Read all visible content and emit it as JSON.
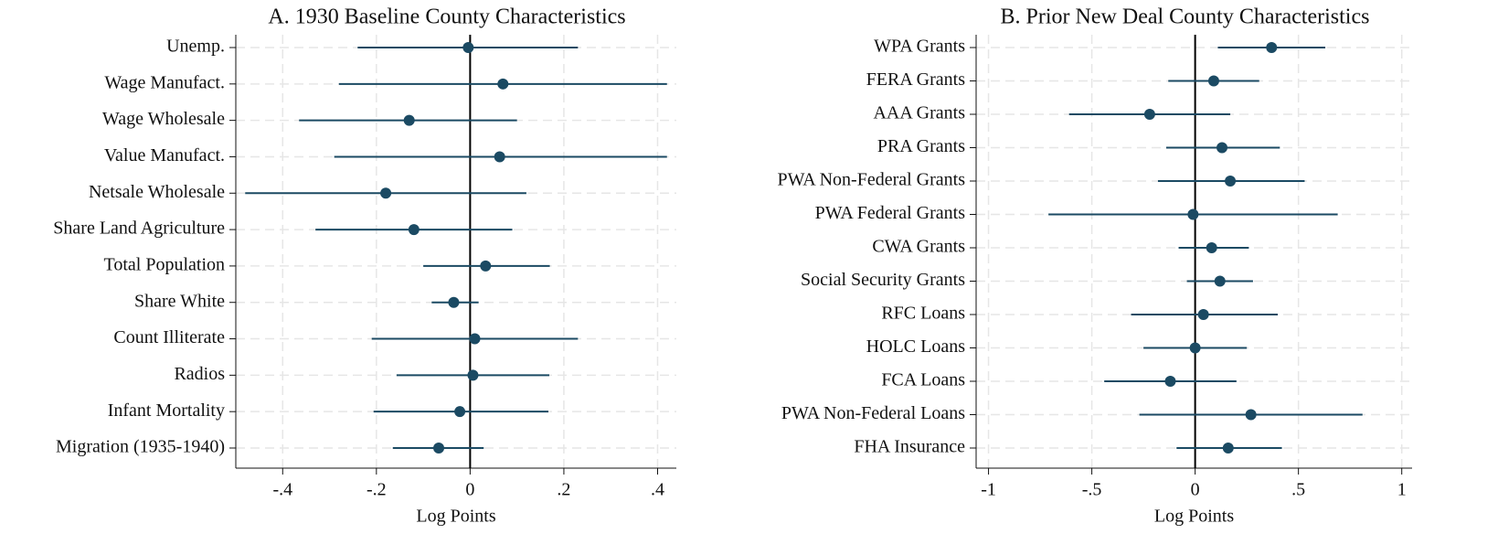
{
  "chart_data": [
    {
      "type": "coefplot",
      "title": "A. 1930 Baseline County Characteristics",
      "x_label": "Log Points",
      "categories": [
        "Unemp.",
        "Wage Manufact.",
        "Wage Wholesale",
        "Value Manufact.",
        "Netsale Wholesale",
        "Share Land Agriculture",
        "Total Population",
        "Share White",
        "Count Illiterate",
        "Radios",
        "Infant Mortality",
        "Migration (1935-1940)"
      ],
      "values": [
        -0.004,
        0.07,
        -0.13,
        0.063,
        -0.18,
        -0.12,
        0.033,
        -0.035,
        0.01,
        0.006,
        -0.022,
        -0.067
      ],
      "lower": [
        -0.24,
        -0.28,
        -0.365,
        -0.29,
        -0.48,
        -0.33,
        -0.1,
        -0.082,
        -0.21,
        -0.157,
        -0.206,
        -0.165
      ],
      "upper": [
        0.23,
        0.42,
        0.1,
        0.42,
        0.12,
        0.09,
        0.17,
        0.018,
        0.23,
        0.169,
        0.167,
        0.029
      ],
      "color": "#1b4a63",
      "refline": 0,
      "grid": true,
      "xlim": [
        -0.5,
        0.44
      ],
      "xticks": [
        {
          "value": -0.4,
          "label": "-.4"
        },
        {
          "value": -0.2,
          "label": "-.2"
        },
        0,
        {
          "value": 0.2,
          "label": ".2"
        },
        {
          "value": 0.4,
          "label": ".4"
        }
      ]
    },
    {
      "type": "coefplot",
      "title": "B. Prior New Deal County Characteristics",
      "x_label": "Log Points",
      "categories": [
        "WPA Grants",
        "FERA Grants",
        "AAA Grants",
        "PRA Grants",
        "PWA Non-Federal Grants",
        "PWA Federal Grants",
        "CWA Grants",
        "Social Security Grants",
        "RFC Loans",
        "HOLC Loans",
        "FCA Loans",
        "PWA Non-Federal Loans",
        "FHA Insurance"
      ],
      "values": [
        0.37,
        0.09,
        -0.22,
        0.13,
        0.17,
        -0.01,
        0.08,
        0.12,
        0.04,
        0.0,
        -0.12,
        0.27,
        0.16
      ],
      "lower": [
        0.11,
        -0.13,
        -0.61,
        -0.14,
        -0.18,
        -0.71,
        -0.08,
        -0.04,
        -0.31,
        -0.25,
        -0.44,
        -0.27,
        -0.09
      ],
      "upper": [
        0.63,
        0.31,
        0.17,
        0.41,
        0.53,
        0.69,
        0.26,
        0.28,
        0.4,
        0.25,
        0.2,
        0.81,
        0.42
      ],
      "color": "#1b4a63",
      "refline": 0,
      "grid": true,
      "xlim": [
        -1.06,
        1.05
      ],
      "xticks": [
        -1,
        {
          "value": -0.5,
          "label": "-.5"
        },
        0,
        {
          "value": 0.5,
          "label": ".5"
        },
        1
      ]
    }
  ]
}
